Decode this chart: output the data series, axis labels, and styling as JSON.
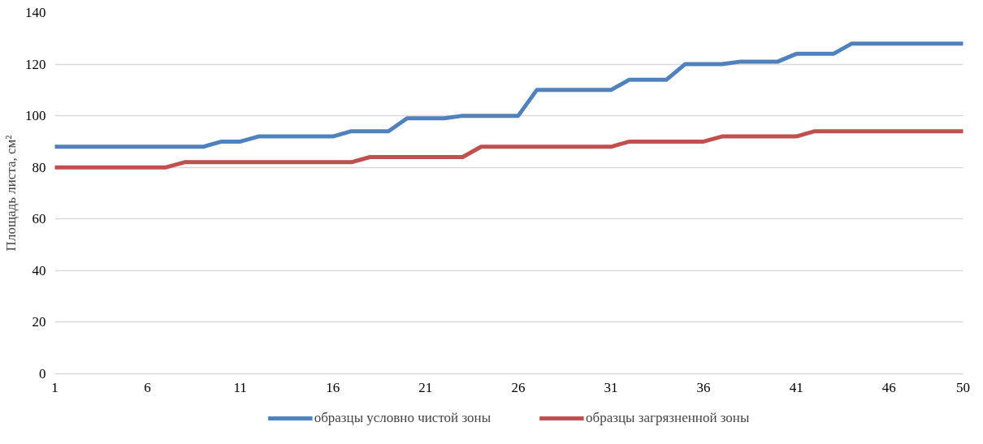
{
  "chart_data": {
    "type": "line",
    "ylabel": "Площадь листа, см²",
    "x": [
      1,
      2,
      3,
      4,
      5,
      6,
      7,
      8,
      9,
      10,
      11,
      12,
      13,
      14,
      15,
      16,
      17,
      18,
      19,
      20,
      21,
      22,
      23,
      24,
      25,
      26,
      27,
      28,
      29,
      30,
      31,
      32,
      33,
      34,
      35,
      36,
      37,
      38,
      39,
      40,
      41,
      42,
      43,
      44,
      45,
      46,
      47,
      48,
      49,
      50
    ],
    "series": [
      {
        "name": "образцы условно чистой зоны",
        "color": "#4f81bd",
        "values": [
          88,
          88,
          88,
          88,
          88,
          88,
          88,
          88,
          88,
          90,
          90,
          92,
          92,
          92,
          92,
          92,
          94,
          94,
          94,
          99,
          99,
          99,
          100,
          100,
          100,
          100,
          110,
          110,
          110,
          110,
          110,
          114,
          114,
          114,
          120,
          120,
          120,
          121,
          121,
          121,
          124,
          124,
          124,
          128,
          128,
          128,
          128,
          128,
          128,
          128
        ]
      },
      {
        "name": "образцы загрязненной зоны",
        "color": "#c0504d",
        "values": [
          80,
          80,
          80,
          80,
          80,
          80,
          80,
          82,
          82,
          82,
          82,
          82,
          82,
          82,
          82,
          82,
          82,
          84,
          84,
          84,
          84,
          84,
          84,
          88,
          88,
          88,
          88,
          88,
          88,
          88,
          88,
          90,
          90,
          90,
          90,
          90,
          92,
          92,
          92,
          92,
          92,
          94,
          94,
          94,
          94,
          94,
          94,
          94,
          94,
          94
        ]
      }
    ],
    "xlim": [
      1,
      50
    ],
    "xticks": [
      1,
      6,
      11,
      16,
      21,
      26,
      31,
      36,
      41,
      46,
      50
    ],
    "ylim": [
      0,
      140
    ],
    "yticks": [
      0,
      20,
      40,
      60,
      80,
      100,
      120,
      140
    ],
    "grid": "y",
    "legend": "bottom",
    "marker": "none",
    "line_style": "solid"
  }
}
